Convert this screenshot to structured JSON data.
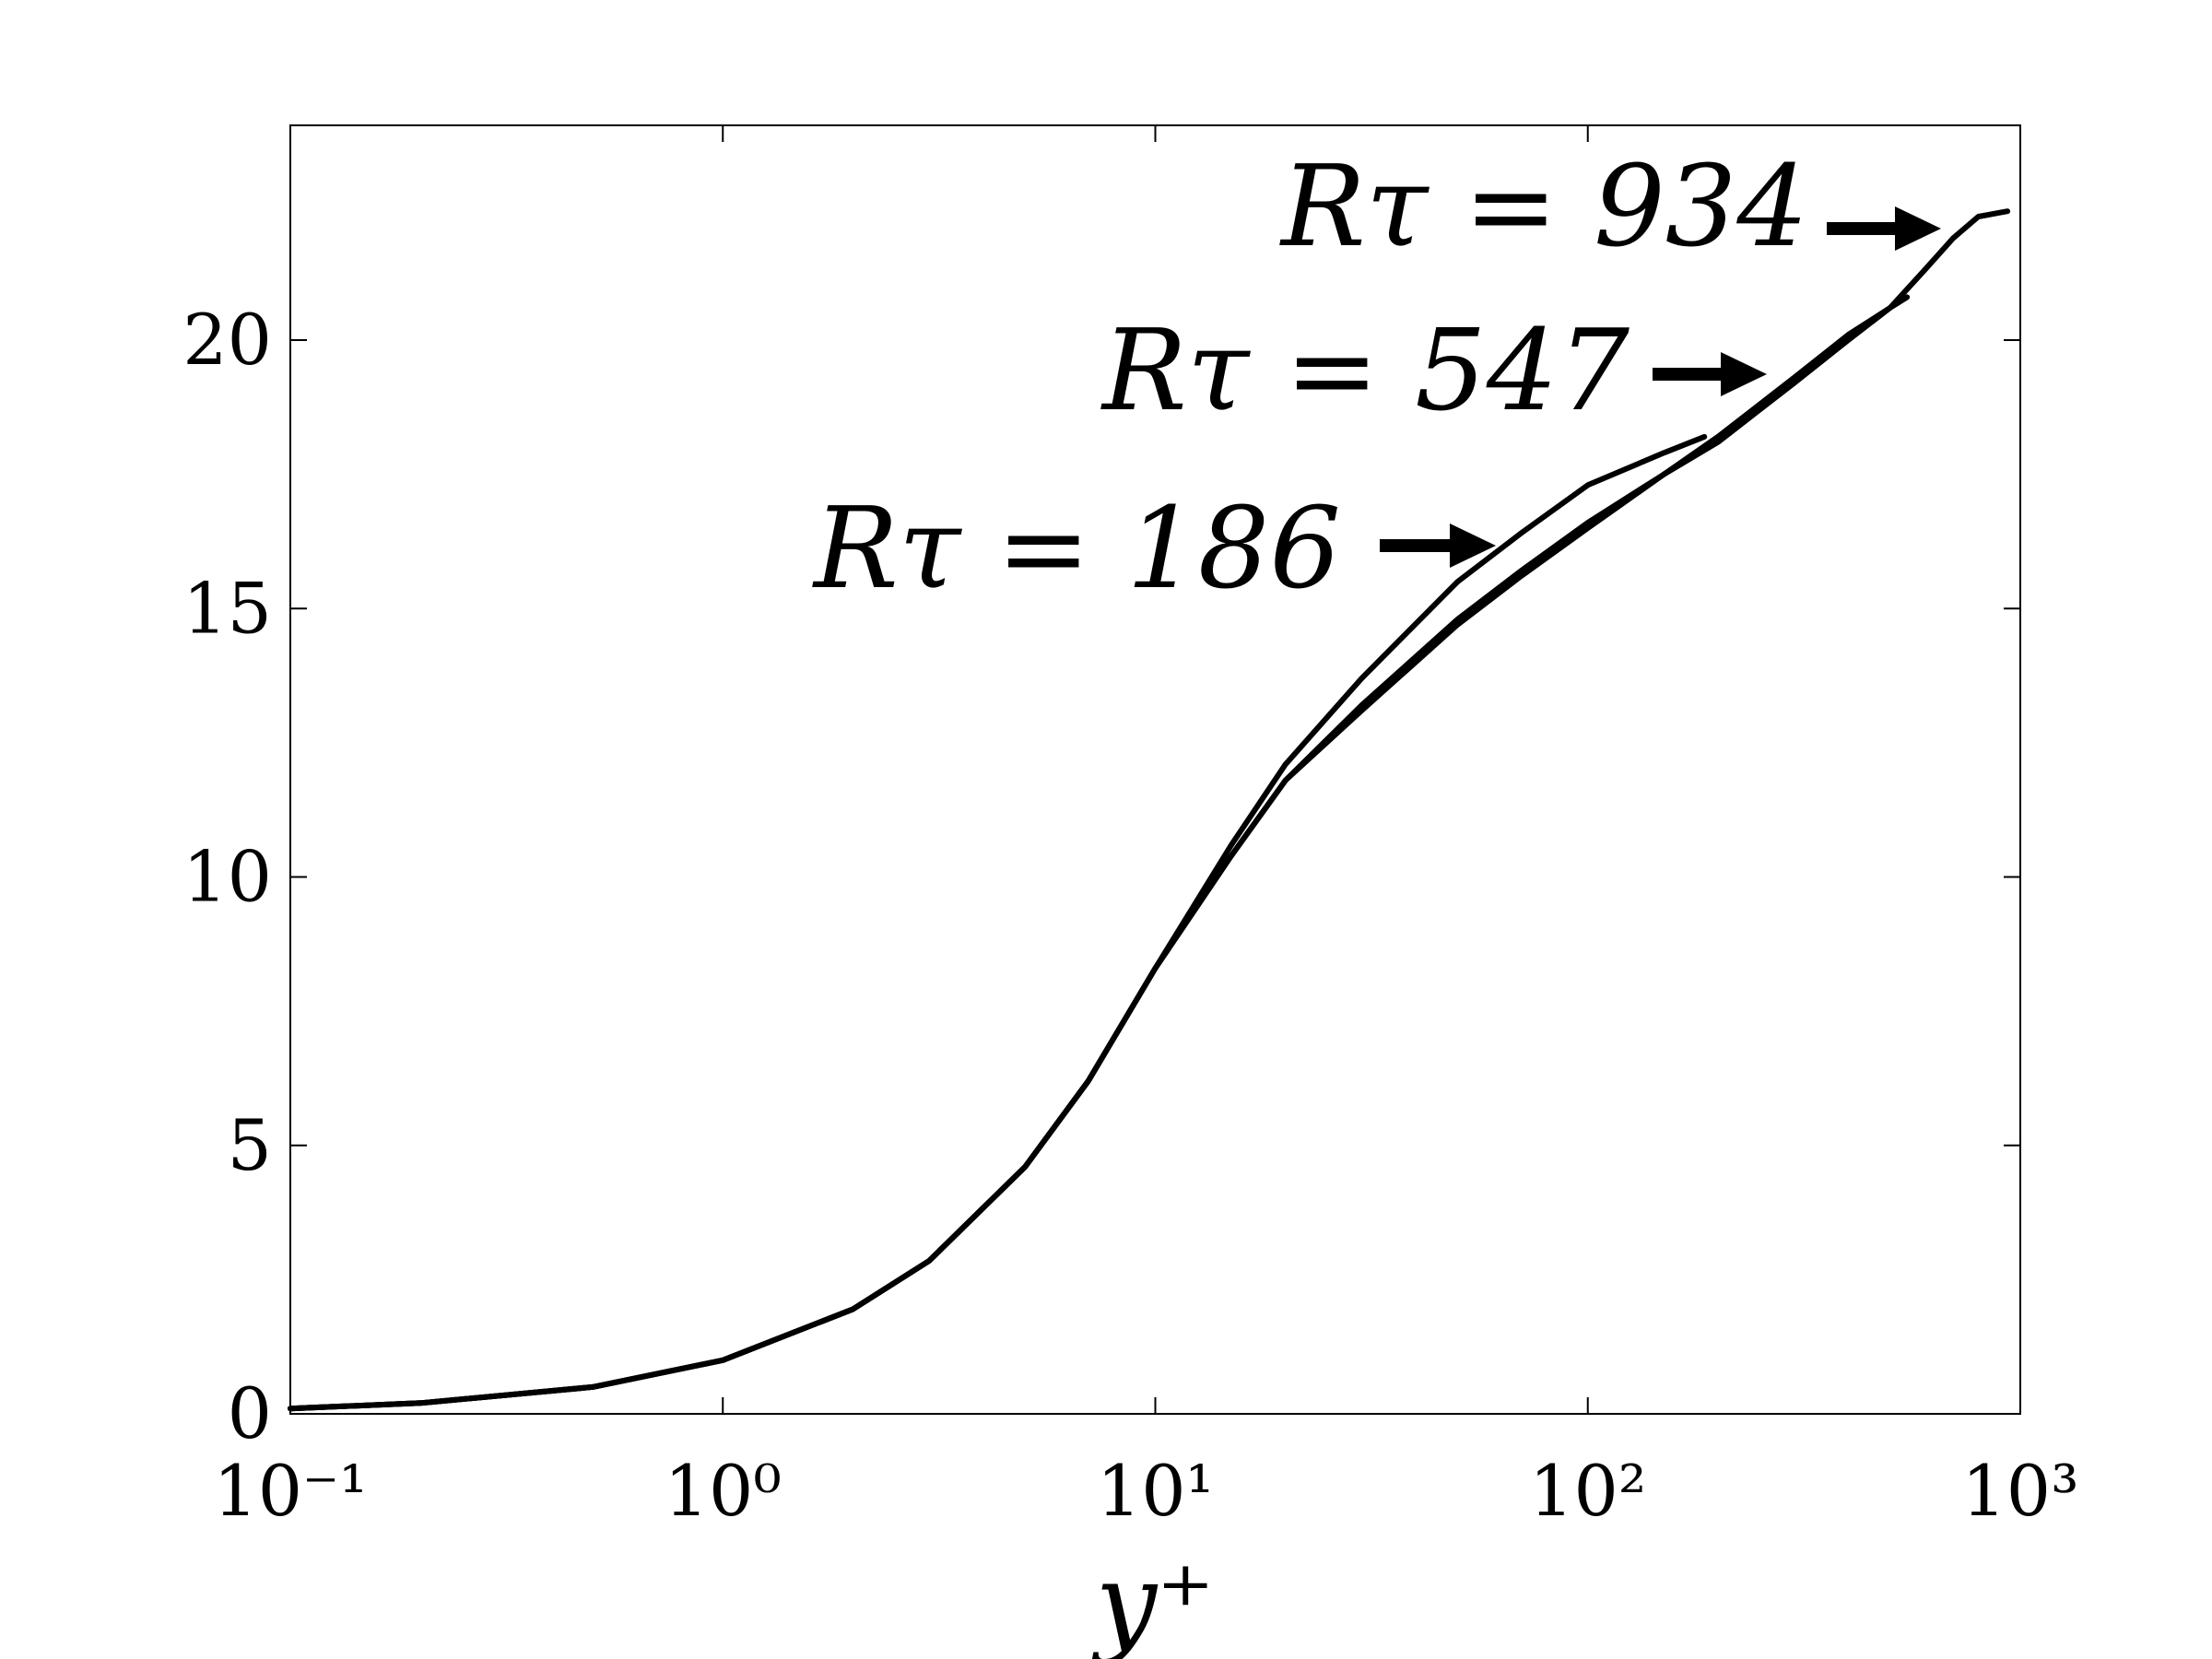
{
  "chart_data": {
    "type": "line",
    "x_label": "y⁺",
    "xlog": true,
    "xlim": [
      0.1,
      1000
    ],
    "xticks": [
      {
        "value": 0.1,
        "label": "10⁻¹"
      },
      {
        "value": 1,
        "label": "10⁰"
      },
      {
        "value": 10,
        "label": "10¹"
      },
      {
        "value": 100,
        "label": "10²"
      },
      {
        "value": 1000,
        "label": "10³"
      }
    ],
    "ylim": [
      0,
      24
    ],
    "yticks": [
      0,
      5,
      10,
      15,
      20
    ],
    "grid": false,
    "annotations": [
      "Rτ = 186",
      "Rτ = 547",
      "Rτ = 934"
    ],
    "series": [
      {
        "name": "Rτ = 186",
        "color": "#000000",
        "x": [
          0.1,
          0.2,
          0.5,
          1,
          2,
          3,
          5,
          7,
          10,
          15,
          20,
          30,
          50,
          70,
          100,
          150,
          186
        ],
        "values": [
          0.1,
          0.2,
          0.5,
          1,
          1.95,
          2.85,
          4.6,
          6.2,
          8.3,
          10.6,
          12.1,
          13.7,
          15.5,
          16.4,
          17.3,
          17.9,
          18.2
        ]
      },
      {
        "name": "Rτ = 547",
        "color": "#000000",
        "x": [
          0.1,
          0.2,
          0.5,
          1,
          2,
          3,
          5,
          7,
          10,
          15,
          20,
          30,
          50,
          70,
          100,
          150,
          200,
          300,
          400,
          500,
          547
        ],
        "values": [
          0.1,
          0.2,
          0.5,
          1,
          1.95,
          2.85,
          4.6,
          6.2,
          8.3,
          10.4,
          11.8,
          13.2,
          14.8,
          15.7,
          16.6,
          17.5,
          18.2,
          19.3,
          20.1,
          20.6,
          20.8
        ]
      },
      {
        "name": "Rτ = 934",
        "color": "#000000",
        "x": [
          0.1,
          0.2,
          0.5,
          1,
          2,
          3,
          5,
          7,
          10,
          15,
          20,
          30,
          50,
          70,
          100,
          150,
          200,
          300,
          400,
          500,
          600,
          700,
          800,
          934
        ],
        "values": [
          0.1,
          0.2,
          0.5,
          1,
          1.95,
          2.85,
          4.6,
          6.2,
          8.3,
          10.4,
          11.8,
          13.1,
          14.7,
          15.6,
          16.5,
          17.5,
          18.1,
          19.2,
          20.0,
          20.6,
          21.3,
          21.9,
          22.3,
          22.4
        ]
      }
    ]
  }
}
